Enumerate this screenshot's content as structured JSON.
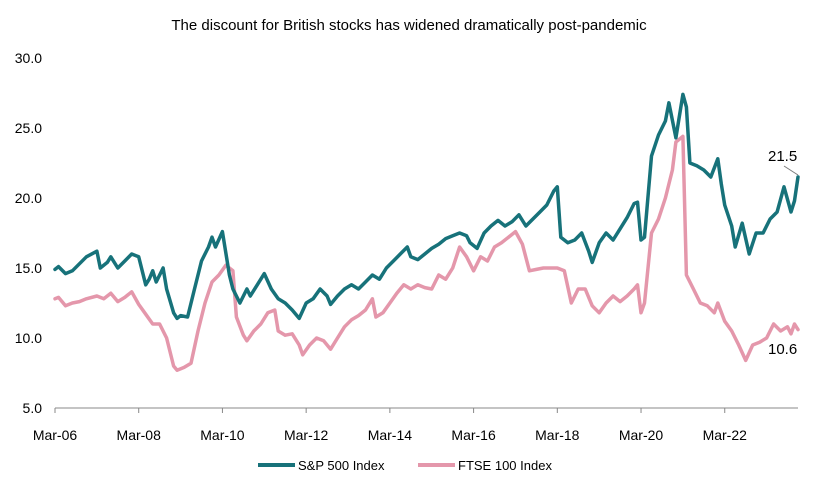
{
  "chart_data": {
    "type": "line",
    "title": "The discount for British stocks has widened dramatically post-pandemic",
    "xlabel": "",
    "ylabel": "",
    "x_range": [
      "2006-03",
      "2023-12"
    ],
    "x_ticks": [
      "Mar-06",
      "Mar-08",
      "Mar-10",
      "Mar-12",
      "Mar-14",
      "Mar-16",
      "Mar-18",
      "Mar-20",
      "Mar-22"
    ],
    "ylim": [
      5.0,
      30.0
    ],
    "y_ticks": [
      "5.0",
      "10.0",
      "15.0",
      "20.0",
      "25.0",
      "30.0"
    ],
    "grid": false,
    "legend": "bottom",
    "series": [
      {
        "name": "S&P 500 Index",
        "color": "#17727a",
        "points": [
          [
            "2006-03",
            14.9
          ],
          [
            "2006-04",
            15.1
          ],
          [
            "2006-06",
            14.6
          ],
          [
            "2006-08",
            14.8
          ],
          [
            "2006-10",
            15.3
          ],
          [
            "2006-12",
            15.8
          ],
          [
            "2007-03",
            16.2
          ],
          [
            "2007-04",
            15.0
          ],
          [
            "2007-06",
            15.4
          ],
          [
            "2007-07",
            15.8
          ],
          [
            "2007-09",
            15.0
          ],
          [
            "2007-11",
            15.5
          ],
          [
            "2008-01",
            16.0
          ],
          [
            "2008-03",
            15.8
          ],
          [
            "2008-05",
            13.8
          ],
          [
            "2008-06",
            14.2
          ],
          [
            "2008-07",
            14.8
          ],
          [
            "2008-08",
            14.0
          ],
          [
            "2008-10",
            15.0
          ],
          [
            "2008-11",
            13.5
          ],
          [
            "2009-01",
            11.8
          ],
          [
            "2009-02",
            11.4
          ],
          [
            "2009-03",
            11.6
          ],
          [
            "2009-05",
            11.5
          ],
          [
            "2009-07",
            13.5
          ],
          [
            "2009-09",
            15.5
          ],
          [
            "2009-11",
            16.5
          ],
          [
            "2009-12",
            17.2
          ],
          [
            "2010-01",
            16.5
          ],
          [
            "2010-03",
            17.6
          ],
          [
            "2010-05",
            14.5
          ],
          [
            "2010-06",
            13.5
          ],
          [
            "2010-08",
            12.5
          ],
          [
            "2010-10",
            13.5
          ],
          [
            "2010-11",
            13.0
          ],
          [
            "2011-01",
            13.8
          ],
          [
            "2011-03",
            14.6
          ],
          [
            "2011-05",
            13.5
          ],
          [
            "2011-07",
            12.8
          ],
          [
            "2011-09",
            12.5
          ],
          [
            "2011-11",
            12.0
          ],
          [
            "2012-01",
            11.4
          ],
          [
            "2012-03",
            12.5
          ],
          [
            "2012-05",
            12.8
          ],
          [
            "2012-07",
            13.5
          ],
          [
            "2012-09",
            13.0
          ],
          [
            "2012-10",
            12.4
          ],
          [
            "2012-12",
            13.0
          ],
          [
            "2013-02",
            13.5
          ],
          [
            "2013-04",
            13.8
          ],
          [
            "2013-06",
            13.5
          ],
          [
            "2013-08",
            14.0
          ],
          [
            "2013-10",
            14.5
          ],
          [
            "2013-12",
            14.2
          ],
          [
            "2014-02",
            15.0
          ],
          [
            "2014-04",
            15.5
          ],
          [
            "2014-06",
            16.0
          ],
          [
            "2014-08",
            16.5
          ],
          [
            "2014-09",
            15.8
          ],
          [
            "2014-11",
            15.6
          ],
          [
            "2015-01",
            16.0
          ],
          [
            "2015-03",
            16.4
          ],
          [
            "2015-05",
            16.7
          ],
          [
            "2015-07",
            17.1
          ],
          [
            "2015-09",
            17.3
          ],
          [
            "2015-11",
            17.5
          ],
          [
            "2016-01",
            17.3
          ],
          [
            "2016-02",
            16.8
          ],
          [
            "2016-04",
            16.4
          ],
          [
            "2016-06",
            17.5
          ],
          [
            "2016-08",
            18.0
          ],
          [
            "2016-10",
            18.4
          ],
          [
            "2016-12",
            18.0
          ],
          [
            "2017-02",
            18.3
          ],
          [
            "2017-04",
            18.8
          ],
          [
            "2017-06",
            18.0
          ],
          [
            "2017-08",
            18.5
          ],
          [
            "2017-10",
            19.0
          ],
          [
            "2017-12",
            19.5
          ],
          [
            "2018-02",
            20.5
          ],
          [
            "2018-03",
            20.8
          ],
          [
            "2018-04",
            17.2
          ],
          [
            "2018-06",
            16.8
          ],
          [
            "2018-08",
            17.0
          ],
          [
            "2018-10",
            17.5
          ],
          [
            "2018-12",
            16.2
          ],
          [
            "2019-01",
            15.4
          ],
          [
            "2019-03",
            16.8
          ],
          [
            "2019-05",
            17.5
          ],
          [
            "2019-07",
            17.0
          ],
          [
            "2019-09",
            17.8
          ],
          [
            "2019-11",
            18.6
          ],
          [
            "2020-01",
            19.6
          ],
          [
            "2020-02",
            19.7
          ],
          [
            "2020-03",
            17.0
          ],
          [
            "2020-04",
            17.2
          ],
          [
            "2020-06",
            23.0
          ],
          [
            "2020-08",
            24.5
          ],
          [
            "2020-10",
            25.5
          ],
          [
            "2020-11",
            26.8
          ],
          [
            "2021-01",
            24.3
          ],
          [
            "2021-03",
            27.4
          ],
          [
            "2021-04",
            26.5
          ],
          [
            "2021-05",
            22.5
          ],
          [
            "2021-07",
            22.3
          ],
          [
            "2021-09",
            22.0
          ],
          [
            "2021-11",
            21.5
          ],
          [
            "2022-01",
            22.8
          ],
          [
            "2022-02",
            21.0
          ],
          [
            "2022-03",
            19.5
          ],
          [
            "2022-05",
            18.0
          ],
          [
            "2022-06",
            16.5
          ],
          [
            "2022-08",
            18.2
          ],
          [
            "2022-10",
            16.0
          ],
          [
            "2022-12",
            17.5
          ],
          [
            "2023-02",
            17.5
          ],
          [
            "2023-04",
            18.5
          ],
          [
            "2023-06",
            19.0
          ],
          [
            "2023-08",
            20.8
          ],
          [
            "2023-10",
            19.0
          ],
          [
            "2023-11",
            19.8
          ],
          [
            "2023-12",
            21.5
          ]
        ]
      },
      {
        "name": "FTSE 100 Index",
        "color": "#e497ab",
        "points": [
          [
            "2006-03",
            12.8
          ],
          [
            "2006-04",
            12.9
          ],
          [
            "2006-06",
            12.3
          ],
          [
            "2006-08",
            12.5
          ],
          [
            "2006-10",
            12.6
          ],
          [
            "2006-12",
            12.8
          ],
          [
            "2007-03",
            13.0
          ],
          [
            "2007-05",
            12.8
          ],
          [
            "2007-07",
            13.2
          ],
          [
            "2007-09",
            12.6
          ],
          [
            "2007-11",
            12.9
          ],
          [
            "2008-01",
            13.3
          ],
          [
            "2008-03",
            12.4
          ],
          [
            "2008-05",
            11.7
          ],
          [
            "2008-07",
            11.0
          ],
          [
            "2008-09",
            11.0
          ],
          [
            "2008-11",
            10.0
          ],
          [
            "2009-01",
            8.0
          ],
          [
            "2009-02",
            7.7
          ],
          [
            "2009-04",
            7.9
          ],
          [
            "2009-06",
            8.2
          ],
          [
            "2009-08",
            10.5
          ],
          [
            "2009-10",
            12.5
          ],
          [
            "2009-12",
            14.0
          ],
          [
            "2010-02",
            14.5
          ],
          [
            "2010-04",
            15.2
          ],
          [
            "2010-06",
            14.8
          ],
          [
            "2010-07",
            11.5
          ],
          [
            "2010-09",
            10.2
          ],
          [
            "2010-10",
            9.8
          ],
          [
            "2010-12",
            10.5
          ],
          [
            "2011-02",
            11.0
          ],
          [
            "2011-04",
            11.8
          ],
          [
            "2011-06",
            12.0
          ],
          [
            "2011-07",
            10.5
          ],
          [
            "2011-09",
            10.2
          ],
          [
            "2011-11",
            10.3
          ],
          [
            "2012-01",
            9.5
          ],
          [
            "2012-02",
            8.8
          ],
          [
            "2012-04",
            9.5
          ],
          [
            "2012-06",
            10.0
          ],
          [
            "2012-08",
            9.8
          ],
          [
            "2012-10",
            9.2
          ],
          [
            "2012-12",
            10.0
          ],
          [
            "2013-02",
            10.8
          ],
          [
            "2013-04",
            11.3
          ],
          [
            "2013-06",
            11.6
          ],
          [
            "2013-08",
            12.0
          ],
          [
            "2013-10",
            12.8
          ],
          [
            "2013-11",
            11.5
          ],
          [
            "2014-01",
            11.8
          ],
          [
            "2014-03",
            12.5
          ],
          [
            "2014-05",
            13.2
          ],
          [
            "2014-07",
            13.8
          ],
          [
            "2014-09",
            13.5
          ],
          [
            "2014-11",
            13.8
          ],
          [
            "2015-01",
            13.6
          ],
          [
            "2015-03",
            13.5
          ],
          [
            "2015-05",
            14.5
          ],
          [
            "2015-07",
            14.2
          ],
          [
            "2015-09",
            15.0
          ],
          [
            "2015-11",
            16.5
          ],
          [
            "2016-01",
            15.8
          ],
          [
            "2016-03",
            14.8
          ],
          [
            "2016-05",
            15.8
          ],
          [
            "2016-07",
            15.5
          ],
          [
            "2016-09",
            16.5
          ],
          [
            "2016-11",
            16.8
          ],
          [
            "2017-01",
            17.2
          ],
          [
            "2017-03",
            17.6
          ],
          [
            "2017-05",
            16.7
          ],
          [
            "2017-07",
            14.8
          ],
          [
            "2017-09",
            14.9
          ],
          [
            "2017-11",
            15.0
          ],
          [
            "2018-01",
            15.0
          ],
          [
            "2018-03",
            15.0
          ],
          [
            "2018-05",
            14.8
          ],
          [
            "2018-07",
            12.5
          ],
          [
            "2018-09",
            13.5
          ],
          [
            "2018-11",
            13.5
          ],
          [
            "2019-01",
            12.3
          ],
          [
            "2019-03",
            11.8
          ],
          [
            "2019-05",
            12.5
          ],
          [
            "2019-07",
            13.0
          ],
          [
            "2019-09",
            12.6
          ],
          [
            "2019-11",
            13.0
          ],
          [
            "2020-01",
            13.5
          ],
          [
            "2020-02",
            13.8
          ],
          [
            "2020-03",
            11.8
          ],
          [
            "2020-04",
            12.5
          ],
          [
            "2020-06",
            17.5
          ],
          [
            "2020-08",
            18.5
          ],
          [
            "2020-10",
            20.0
          ],
          [
            "2020-12",
            22.0
          ],
          [
            "2021-01",
            24.0
          ],
          [
            "2021-03",
            24.4
          ],
          [
            "2021-04",
            14.5
          ],
          [
            "2021-06",
            13.5
          ],
          [
            "2021-08",
            12.5
          ],
          [
            "2021-10",
            12.3
          ],
          [
            "2021-12",
            11.8
          ],
          [
            "2022-01",
            12.5
          ],
          [
            "2022-03",
            11.2
          ],
          [
            "2022-05",
            10.5
          ],
          [
            "2022-07",
            9.5
          ],
          [
            "2022-09",
            8.4
          ],
          [
            "2022-11",
            9.5
          ],
          [
            "2023-01",
            9.7
          ],
          [
            "2023-03",
            10.0
          ],
          [
            "2023-05",
            11.0
          ],
          [
            "2023-07",
            10.5
          ],
          [
            "2023-09",
            10.8
          ],
          [
            "2023-10",
            10.3
          ],
          [
            "2023-11",
            11.0
          ],
          [
            "2023-12",
            10.6
          ]
        ]
      }
    ],
    "annotations": [
      "21.5",
      "10.6"
    ]
  }
}
